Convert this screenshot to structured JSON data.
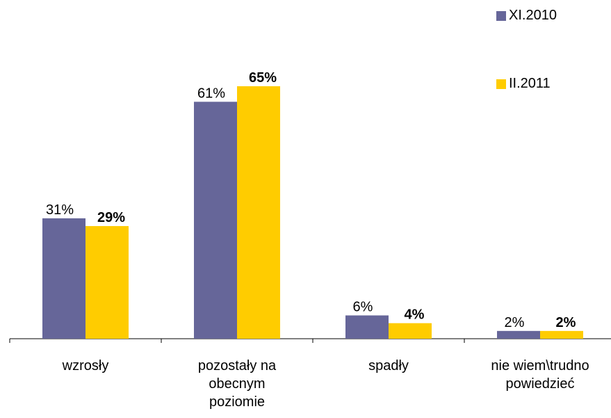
{
  "chart_data": {
    "type": "bar",
    "categories": [
      "wzrosły",
      "pozostały na obecnym poziomie",
      "spadły",
      "nie wiem\\trudno powiedzieć"
    ],
    "category_lines": [
      [
        "wzrosły"
      ],
      [
        "pozostały na",
        "obecnym",
        "poziomie"
      ],
      [
        "spadły"
      ],
      [
        "nie wiem\\trudno",
        "powiedzieć"
      ]
    ],
    "series": [
      {
        "name": "XI.2010",
        "values": [
          31,
          61,
          6,
          2
        ],
        "labels": [
          "31%",
          "61%",
          "6%",
          "2%"
        ],
        "color": "#666699",
        "label_bold": false
      },
      {
        "name": "II.2011",
        "values": [
          29,
          65,
          4,
          2
        ],
        "labels": [
          "29%",
          "65%",
          "4%",
          "2%"
        ],
        "color": "#ffcc00",
        "label_bold": true
      }
    ],
    "ylim": [
      0,
      70
    ],
    "grid": false,
    "legend": "top-right",
    "xlabel": "",
    "ylabel": "",
    "title": ""
  }
}
